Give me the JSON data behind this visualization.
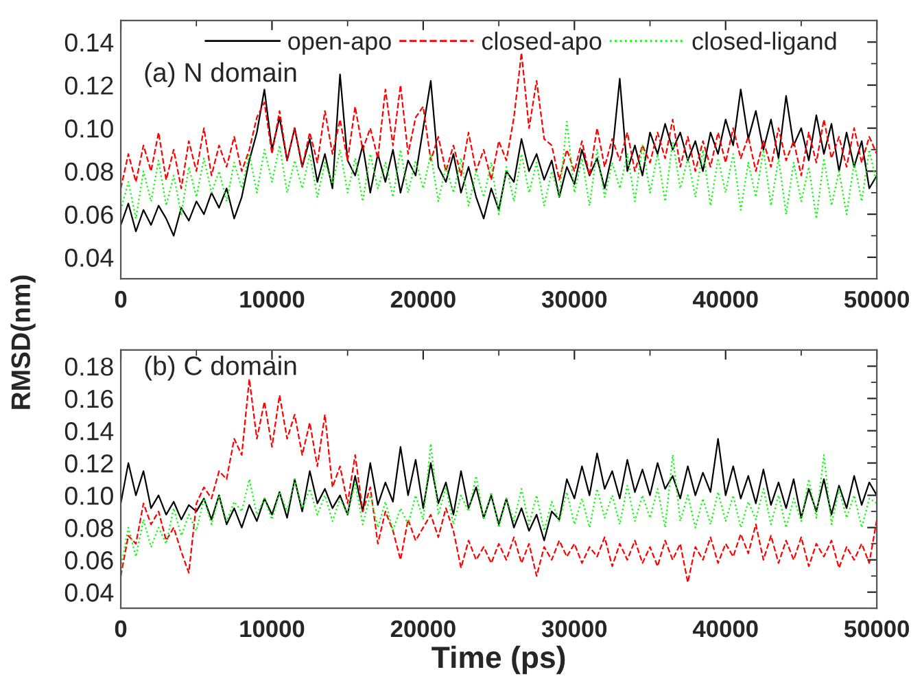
{
  "chart_data": [
    {
      "type": "line",
      "ylabel": "RMSD(nm)",
      "annotations": [
        "(a) N domain"
      ],
      "legend": "top",
      "grid": false,
      "marker": "none",
      "x": [
        0,
        500,
        1000,
        1500,
        2000,
        2500,
        3000,
        3500,
        4000,
        4500,
        5000,
        5500,
        6000,
        6500,
        7000,
        7500,
        8000,
        8500,
        9000,
        9500,
        10000,
        10500,
        11000,
        11500,
        12000,
        12500,
        13000,
        13500,
        14000,
        14500,
        15000,
        15500,
        16000,
        16500,
        17000,
        17500,
        18000,
        18500,
        19000,
        19500,
        20000,
        20500,
        21000,
        21500,
        22000,
        22500,
        23000,
        23500,
        24000,
        24500,
        25000,
        25500,
        26000,
        26500,
        27000,
        27500,
        28000,
        28500,
        29000,
        29500,
        30000,
        30500,
        31000,
        31500,
        32000,
        32500,
        33000,
        33500,
        34000,
        34500,
        35000,
        35500,
        36000,
        36500,
        37000,
        37500,
        38000,
        38500,
        39000,
        39500,
        40000,
        40500,
        41000,
        41500,
        42000,
        42500,
        43000,
        43500,
        44000,
        44500,
        45000,
        45500,
        46000,
        46500,
        47000,
        47500,
        48000,
        48500,
        49000,
        49500,
        50000
      ],
      "xlim": [
        0,
        50000
      ],
      "xticks": [
        0,
        10000,
        20000,
        30000,
        40000,
        50000
      ],
      "ylim": [
        0.03,
        0.15
      ],
      "yticks": [
        {
          "value": 0.04,
          "label": "0.04"
        },
        {
          "value": 0.06,
          "label": "0.06"
        },
        {
          "value": 0.08,
          "label": "0.08"
        },
        {
          "value": 0.1,
          "label": "0.10"
        },
        {
          "value": 0.12,
          "label": "0.12"
        },
        {
          "value": 0.14,
          "label": "0.14"
        }
      ],
      "series": [
        {
          "name": "open-apo",
          "color": "#000000",
          "line_style": "solid",
          "values": [
            0.055,
            0.065,
            0.052,
            0.062,
            0.055,
            0.064,
            0.058,
            0.05,
            0.063,
            0.057,
            0.066,
            0.06,
            0.07,
            0.063,
            0.072,
            0.058,
            0.068,
            0.085,
            0.098,
            0.118,
            0.09,
            0.105,
            0.085,
            0.1,
            0.082,
            0.095,
            0.075,
            0.088,
            0.072,
            0.125,
            0.085,
            0.078,
            0.092,
            0.07,
            0.088,
            0.075,
            0.09,
            0.07,
            0.085,
            0.078,
            0.1,
            0.122,
            0.082,
            0.075,
            0.088,
            0.07,
            0.082,
            0.068,
            0.058,
            0.072,
            0.062,
            0.08,
            0.075,
            0.095,
            0.08,
            0.088,
            0.076,
            0.085,
            0.068,
            0.082,
            0.074,
            0.09,
            0.078,
            0.086,
            0.072,
            0.088,
            0.123,
            0.08,
            0.092,
            0.078,
            0.098,
            0.088,
            0.102,
            0.09,
            0.098,
            0.085,
            0.094,
            0.08,
            0.098,
            0.088,
            0.104,
            0.092,
            0.118,
            0.095,
            0.108,
            0.09,
            0.104,
            0.086,
            0.115,
            0.092,
            0.1,
            0.085,
            0.106,
            0.088,
            0.102,
            0.08,
            0.098,
            0.082,
            0.094,
            0.072,
            0.078
          ]
        },
        {
          "name": "closed-apo",
          "color": "#ff0000",
          "line_style": "dashed",
          "values": [
            0.072,
            0.088,
            0.075,
            0.092,
            0.08,
            0.098,
            0.076,
            0.09,
            0.072,
            0.094,
            0.08,
            0.1,
            0.078,
            0.092,
            0.082,
            0.096,
            0.08,
            0.09,
            0.105,
            0.112,
            0.088,
            0.108,
            0.085,
            0.1,
            0.082,
            0.098,
            0.084,
            0.108,
            0.088,
            0.104,
            0.085,
            0.11,
            0.09,
            0.1,
            0.086,
            0.118,
            0.092,
            0.12,
            0.088,
            0.105,
            0.11,
            0.085,
            0.096,
            0.08,
            0.092,
            0.078,
            0.098,
            0.08,
            0.09,
            0.076,
            0.094,
            0.085,
            0.105,
            0.135,
            0.1,
            0.122,
            0.095,
            0.092,
            0.076,
            0.09,
            0.08,
            0.094,
            0.078,
            0.1,
            0.082,
            0.095,
            0.085,
            0.098,
            0.08,
            0.092,
            0.084,
            0.098,
            0.086,
            0.104,
            0.082,
            0.096,
            0.08,
            0.094,
            0.082,
            0.098,
            0.084,
            0.1,
            0.086,
            0.096,
            0.08,
            0.094,
            0.082,
            0.1,
            0.085,
            0.094,
            0.078,
            0.098,
            0.084,
            0.104,
            0.086,
            0.096,
            0.082,
            0.1,
            0.084,
            0.096,
            0.088
          ]
        },
        {
          "name": "closed-ligand",
          "color": "#00ff00",
          "line_style": "dotted",
          "values": [
            0.062,
            0.075,
            0.058,
            0.08,
            0.066,
            0.085,
            0.064,
            0.078,
            0.06,
            0.082,
            0.068,
            0.086,
            0.07,
            0.08,
            0.066,
            0.084,
            0.072,
            0.088,
            0.07,
            0.09,
            0.075,
            0.092,
            0.07,
            0.085,
            0.072,
            0.088,
            0.068,
            0.084,
            0.074,
            0.09,
            0.07,
            0.086,
            0.066,
            0.088,
            0.072,
            0.084,
            0.068,
            0.09,
            0.07,
            0.085,
            0.072,
            0.088,
            0.066,
            0.082,
            0.07,
            0.086,
            0.064,
            0.08,
            0.068,
            0.084,
            0.06,
            0.082,
            0.066,
            0.088,
            0.07,
            0.084,
            0.064,
            0.08,
            0.068,
            0.103,
            0.07,
            0.086,
            0.064,
            0.09,
            0.068,
            0.084,
            0.072,
            0.088,
            0.066,
            0.092,
            0.07,
            0.088,
            0.066,
            0.094,
            0.072,
            0.086,
            0.068,
            0.09,
            0.064,
            0.086,
            0.07,
            0.088,
            0.062,
            0.084,
            0.068,
            0.09,
            0.064,
            0.086,
            0.06,
            0.084,
            0.066,
            0.082,
            0.058,
            0.086,
            0.064,
            0.08,
            0.06,
            0.084,
            0.066,
            0.09,
            0.074
          ]
        }
      ]
    },
    {
      "type": "line",
      "xlabel": "Time (ps)",
      "annotations": [
        "(b) C domain"
      ],
      "grid": false,
      "marker": "none",
      "x": [
        0,
        500,
        1000,
        1500,
        2000,
        2500,
        3000,
        3500,
        4000,
        4500,
        5000,
        5500,
        6000,
        6500,
        7000,
        7500,
        8000,
        8500,
        9000,
        9500,
        10000,
        10500,
        11000,
        11500,
        12000,
        12500,
        13000,
        13500,
        14000,
        14500,
        15000,
        15500,
        16000,
        16500,
        17000,
        17500,
        18000,
        18500,
        19000,
        19500,
        20000,
        20500,
        21000,
        21500,
        22000,
        22500,
        23000,
        23500,
        24000,
        24500,
        25000,
        25500,
        26000,
        26500,
        27000,
        27500,
        28000,
        28500,
        29000,
        29500,
        30000,
        30500,
        31000,
        31500,
        32000,
        32500,
        33000,
        33500,
        34000,
        34500,
        35000,
        35500,
        36000,
        36500,
        37000,
        37500,
        38000,
        38500,
        39000,
        39500,
        40000,
        40500,
        41000,
        41500,
        42000,
        42500,
        43000,
        43500,
        44000,
        44500,
        45000,
        45500,
        46000,
        46500,
        47000,
        47500,
        48000,
        48500,
        49000,
        49500,
        50000
      ],
      "xlim": [
        0,
        50000
      ],
      "xticks": [
        0,
        10000,
        20000,
        30000,
        40000,
        50000
      ],
      "ylim": [
        0.03,
        0.19
      ],
      "yticks": [
        {
          "value": 0.04,
          "label": "0.04"
        },
        {
          "value": 0.06,
          "label": "0.06"
        },
        {
          "value": 0.08,
          "label": "0.08"
        },
        {
          "value": 0.1,
          "label": "0.10"
        },
        {
          "value": 0.12,
          "label": "0.12"
        },
        {
          "value": 0.14,
          "label": "0.14"
        },
        {
          "value": 0.16,
          "label": "0.16"
        },
        {
          "value": 0.18,
          "label": "0.18"
        }
      ],
      "series": [
        {
          "color": "#000000",
          "line_style": "solid",
          "values": [
            0.095,
            0.12,
            0.1,
            0.115,
            0.092,
            0.1,
            0.088,
            0.096,
            0.085,
            0.094,
            0.09,
            0.098,
            0.085,
            0.1,
            0.082,
            0.092,
            0.08,
            0.094,
            0.084,
            0.098,
            0.088,
            0.102,
            0.086,
            0.11,
            0.09,
            0.115,
            0.095,
            0.104,
            0.092,
            0.1,
            0.088,
            0.112,
            0.09,
            0.12,
            0.094,
            0.108,
            0.096,
            0.13,
            0.1,
            0.122,
            0.092,
            0.12,
            0.095,
            0.108,
            0.088,
            0.115,
            0.092,
            0.105,
            0.086,
            0.1,
            0.082,
            0.098,
            0.08,
            0.092,
            0.078,
            0.088,
            0.072,
            0.09,
            0.085,
            0.11,
            0.098,
            0.118,
            0.1,
            0.126,
            0.104,
            0.115,
            0.098,
            0.122,
            0.102,
            0.116,
            0.1,
            0.12,
            0.104,
            0.112,
            0.098,
            0.118,
            0.1,
            0.114,
            0.102,
            0.135,
            0.1,
            0.118,
            0.098,
            0.112,
            0.095,
            0.116,
            0.094,
            0.108,
            0.092,
            0.11,
            0.086,
            0.104,
            0.09,
            0.11,
            0.088,
            0.106,
            0.092,
            0.112,
            0.094,
            0.108,
            0.1
          ]
        },
        {
          "color": "#ff0000",
          "line_style": "dashed",
          "values": [
            0.05,
            0.075,
            0.07,
            0.095,
            0.082,
            0.09,
            0.072,
            0.08,
            0.065,
            0.052,
            0.095,
            0.105,
            0.098,
            0.115,
            0.11,
            0.135,
            0.125,
            0.172,
            0.135,
            0.158,
            0.13,
            0.162,
            0.135,
            0.15,
            0.125,
            0.145,
            0.118,
            0.15,
            0.105,
            0.118,
            0.095,
            0.125,
            0.09,
            0.105,
            0.07,
            0.09,
            0.078,
            0.06,
            0.085,
            0.072,
            0.08,
            0.088,
            0.074,
            0.092,
            0.078,
            0.055,
            0.072,
            0.06,
            0.068,
            0.058,
            0.07,
            0.06,
            0.074,
            0.058,
            0.07,
            0.05,
            0.068,
            0.06,
            0.072,
            0.062,
            0.07,
            0.058,
            0.068,
            0.062,
            0.074,
            0.056,
            0.07,
            0.06,
            0.072,
            0.058,
            0.068,
            0.056,
            0.072,
            0.06,
            0.07,
            0.046,
            0.068,
            0.06,
            0.074,
            0.058,
            0.07,
            0.062,
            0.076,
            0.064,
            0.082,
            0.06,
            0.075,
            0.058,
            0.072,
            0.06,
            0.074,
            0.056,
            0.07,
            0.062,
            0.072,
            0.055,
            0.068,
            0.06,
            0.07,
            0.058,
            0.085
          ]
        },
        {
          "color": "#00ff00",
          "line_style": "dotted",
          "values": [
            0.055,
            0.08,
            0.062,
            0.085,
            0.068,
            0.08,
            0.07,
            0.092,
            0.075,
            0.088,
            0.078,
            0.098,
            0.082,
            0.1,
            0.084,
            0.096,
            0.09,
            0.11,
            0.088,
            0.098,
            0.085,
            0.102,
            0.09,
            0.11,
            0.092,
            0.104,
            0.088,
            0.1,
            0.084,
            0.098,
            0.088,
            0.108,
            0.082,
            0.1,
            0.08,
            0.096,
            0.078,
            0.092,
            0.082,
            0.1,
            0.085,
            0.132,
            0.088,
            0.105,
            0.082,
            0.1,
            0.09,
            0.112,
            0.085,
            0.102,
            0.08,
            0.098,
            0.084,
            0.104,
            0.082,
            0.1,
            0.078,
            0.096,
            0.084,
            0.102,
            0.082,
            0.098,
            0.08,
            0.104,
            0.086,
            0.1,
            0.082,
            0.106,
            0.084,
            0.1,
            0.086,
            0.104,
            0.08,
            0.125,
            0.084,
            0.1,
            0.08,
            0.098,
            0.082,
            0.102,
            0.084,
            0.1,
            0.08,
            0.096,
            0.085,
            0.104,
            0.082,
            0.1,
            0.08,
            0.098,
            0.084,
            0.11,
            0.086,
            0.125,
            0.082,
            0.104,
            0.086,
            0.1,
            0.08,
            0.098,
            0.095
          ]
        }
      ]
    }
  ]
}
